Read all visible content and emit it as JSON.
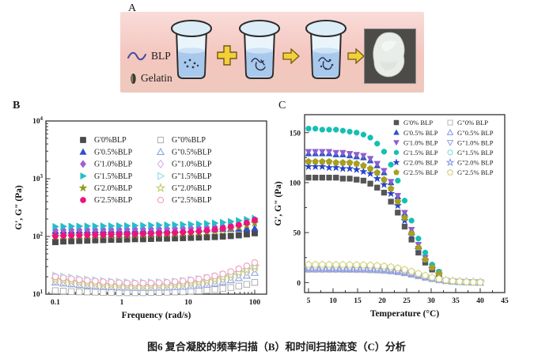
{
  "caption": "图6 复合凝胶的频率扫描（B）和时间扫描流变（C）分析",
  "panelA": {
    "label": "A",
    "legend": {
      "blp": "BLP",
      "gelatin": "Gelatin"
    }
  },
  "panelB": {
    "label": "B"
  },
  "panelC": {
    "label": "C"
  },
  "chart_data": [
    {
      "id": "B",
      "type": "scatter",
      "xscale": "log",
      "yscale": "log",
      "xlabel": "Frequency (rad/s)",
      "ylabel": "G', G\" (Pa)",
      "xlim": [
        0.072,
        151
      ],
      "ylim": [
        10,
        10000
      ],
      "xticks": [
        0.1,
        1,
        10,
        100
      ],
      "xtick_labels": [
        "0.1",
        "1",
        "10",
        "100"
      ],
      "yticks": [
        10,
        100,
        1000,
        10000
      ],
      "ytick_exponents": [
        1,
        2,
        3,
        4
      ],
      "legend_position": "top-left-inside",
      "grid": false,
      "x": [
        0.1,
        0.132,
        0.174,
        0.229,
        0.302,
        0.398,
        0.525,
        0.692,
        0.912,
        1.2,
        1.58,
        2.09,
        2.75,
        3.63,
        4.79,
        6.31,
        8.32,
        10.96,
        14.45,
        19.05,
        25.12,
        33.11,
        43.65,
        57.54,
        75.86,
        100
      ],
      "series": [
        {
          "label": "G'0%BLP",
          "marker": "square",
          "filled": true,
          "color": "#4b4b4b",
          "values": [
            80,
            82,
            83,
            84,
            85,
            86,
            87,
            88,
            88,
            89,
            90,
            90,
            91,
            92,
            92,
            93,
            94,
            95,
            96,
            97,
            98,
            100,
            102,
            105,
            109,
            114
          ]
        },
        {
          "label": "G'0.5%BLP",
          "marker": "triangle-up",
          "filled": true,
          "color": "#2e4fc8",
          "values": [
            124,
            125,
            125,
            126,
            126,
            127,
            127,
            128,
            128,
            128,
            129,
            129,
            129,
            130,
            130,
            130,
            131,
            131,
            132,
            132,
            133,
            134,
            135,
            136,
            137,
            138
          ]
        },
        {
          "label": "G'1.0%BLP",
          "marker": "diamond",
          "filled": true,
          "color": "#a15cd6",
          "values": [
            128,
            129,
            130,
            130,
            131,
            131,
            132,
            132,
            133,
            133,
            134,
            134,
            135,
            136,
            136,
            137,
            138,
            139,
            141,
            143,
            146,
            150,
            156,
            163,
            172,
            183
          ]
        },
        {
          "label": "G'1.5%BLP",
          "marker": "triangle-right",
          "filled": true,
          "color": "#26bcc8",
          "values": [
            148,
            149,
            150,
            150,
            151,
            151,
            152,
            152,
            153,
            153,
            154,
            155,
            156,
            157,
            158,
            159,
            160,
            162,
            164,
            167,
            170,
            175,
            181,
            188,
            196,
            206
          ]
        },
        {
          "label": "G'2.0%BLP",
          "marker": "star",
          "filled": true,
          "color": "#8f9b1e",
          "values": [
            100,
            101,
            102,
            102,
            103,
            103,
            104,
            104,
            105,
            105,
            106,
            107,
            108,
            109,
            110,
            111,
            113,
            115,
            117,
            120,
            124,
            129,
            136,
            145,
            156,
            170
          ]
        },
        {
          "label": "G'2.5%BLP",
          "marker": "circle",
          "filled": true,
          "color": "#ee127e",
          "values": [
            102,
            103,
            104,
            105,
            106,
            106,
            107,
            108,
            108,
            109,
            110,
            111,
            112,
            113,
            114,
            116,
            118,
            120,
            123,
            127,
            132,
            138,
            147,
            158,
            172,
            192
          ]
        },
        {
          "label": "G\"0%BLP",
          "marker": "square",
          "filled": false,
          "color": "#b4b4b4",
          "values": [
            11.5,
            11.3,
            11.1,
            11,
            10.9,
            10.8,
            10.7,
            10.7,
            10.6,
            10.6,
            10.6,
            10.6,
            10.7,
            10.7,
            10.8,
            10.9,
            11,
            11.2,
            11.4,
            11.7,
            12,
            12.5,
            13,
            13.8,
            14.8,
            16
          ]
        },
        {
          "label": "G\"0.5%BLP",
          "marker": "triangle-up",
          "filled": false,
          "color": "#89a3e0",
          "values": [
            16,
            15.4,
            14.9,
            14.5,
            14.1,
            13.8,
            13.5,
            13.3,
            13.1,
            13,
            12.9,
            12.9,
            12.9,
            13,
            13.1,
            13.3,
            13.5,
            13.8,
            14.2,
            14.7,
            15.4,
            16.3,
            17.5,
            19,
            21,
            23.5
          ]
        },
        {
          "label": "G\"1.0%BLP",
          "marker": "diamond",
          "filled": false,
          "color": "#cfb2ea",
          "values": [
            17,
            16.4,
            15.8,
            15.3,
            14.9,
            14.5,
            14.2,
            14,
            13.8,
            13.7,
            13.6,
            13.6,
            13.7,
            13.8,
            14,
            14.2,
            14.5,
            14.9,
            15.4,
            16.1,
            17,
            18.2,
            19.8,
            21.8,
            24.4,
            27.7
          ]
        },
        {
          "label": "G\"1.5%BLP",
          "marker": "triangle-right",
          "filled": false,
          "color": "#90dce2",
          "values": [
            21,
            20.1,
            19.3,
            18.6,
            18,
            17.5,
            17,
            16.6,
            16.3,
            16.1,
            16,
            15.9,
            16,
            16.1,
            16.3,
            16.6,
            17,
            17.5,
            18.2,
            19,
            20.1,
            21.5,
            23.3,
            25.6,
            28.5,
            32
          ]
        },
        {
          "label": "G\"2.0%BLP",
          "marker": "star",
          "filled": false,
          "color": "#c3cd6e",
          "values": [
            18,
            17.3,
            16.6,
            16.1,
            15.6,
            15.2,
            14.8,
            14.5,
            14.3,
            14.1,
            14,
            14,
            14.1,
            14.2,
            14.4,
            14.7,
            15.1,
            15.6,
            16.2,
            17,
            18.1,
            19.5,
            21.2,
            23.4,
            26.2,
            29.7
          ]
        },
        {
          "label": "G\"2.5%BLP",
          "marker": "circle",
          "filled": false,
          "color": "#f59ac4",
          "values": [
            20,
            19.2,
            18.5,
            17.8,
            17.3,
            16.8,
            16.4,
            16.1,
            15.8,
            15.6,
            15.5,
            15.5,
            15.6,
            15.8,
            16,
            16.4,
            16.9,
            17.5,
            18.3,
            19.4,
            20.7,
            22.4,
            24.6,
            27.4,
            30.9,
            35.2
          ]
        }
      ]
    },
    {
      "id": "C",
      "type": "scatter",
      "xscale": "linear",
      "yscale": "linear",
      "xlabel": "Temperature (°C)",
      "ylabel": "G', G\" (Pa)",
      "xlim": [
        4.2,
        45
      ],
      "ylim": [
        -10,
        168
      ],
      "xticks": [
        5,
        10,
        15,
        20,
        25,
        30,
        35,
        40,
        45
      ],
      "xtick_labels": [
        "5",
        "10",
        "15",
        "20",
        "25",
        "30",
        "35",
        "40",
        "45"
      ],
      "yticks": [
        0,
        50,
        100,
        150
      ],
      "ytick_labels": [
        "0",
        "50",
        "100",
        "150"
      ],
      "legend_position": "top-right-inside",
      "grid": false,
      "x": [
        5,
        6.4,
        7.8,
        9.2,
        10.6,
        12,
        13.4,
        14.8,
        16.2,
        17.6,
        19,
        20.4,
        21.8,
        23.2,
        24.6,
        26,
        27.4,
        28.8,
        30.2,
        31.6,
        33,
        34.4,
        35.8,
        37.2,
        38.6,
        40
      ],
      "series": [
        {
          "label": "G'0% BLP",
          "marker": "square",
          "filled": true,
          "color": "#555555",
          "values": [
            105,
            105,
            105,
            105,
            105,
            104,
            104,
            103,
            102,
            99,
            95,
            90,
            81,
            70,
            56,
            43,
            30,
            20,
            13,
            8,
            null,
            null,
            null,
            null,
            null,
            null
          ]
        },
        {
          "label": "G'0.5% BLP",
          "marker": "triangle-up",
          "filled": true,
          "color": "#2f52c6",
          "values": [
            129,
            129,
            129,
            129,
            128,
            128,
            127,
            126,
            125,
            122,
            117,
            110,
            100,
            86,
            69,
            52,
            37,
            25,
            15,
            9,
            null,
            null,
            null,
            null,
            null,
            null
          ]
        },
        {
          "label": "G'1.0% BLP",
          "marker": "triangle-down",
          "filled": true,
          "color": "#8f5ecf",
          "values": [
            131,
            131,
            131,
            131,
            130,
            130,
            129,
            128,
            127,
            124,
            119,
            112,
            101,
            87,
            70,
            53,
            38,
            25,
            16,
            10,
            null,
            null,
            null,
            null,
            null,
            null
          ]
        },
        {
          "label": "G'1.5% BLP",
          "marker": "circle",
          "filled": true,
          "color": "#14bfb4",
          "values": [
            154,
            154,
            153,
            153,
            153,
            152,
            151,
            150,
            148,
            145,
            139,
            131,
            118,
            102,
            82,
            62,
            44,
            30,
            18,
            11,
            null,
            null,
            null,
            null,
            null,
            null
          ]
        },
        {
          "label": "G'2.0% BLP",
          "marker": "star",
          "filled": true,
          "color": "#2543cc",
          "values": [
            116,
            116,
            116,
            115,
            115,
            114,
            114,
            113,
            111,
            109,
            104,
            98,
            89,
            77,
            62,
            47,
            33,
            22,
            14,
            8,
            null,
            null,
            null,
            null,
            null,
            null
          ]
        },
        {
          "label": "G'2.5% BLP",
          "marker": "pentagon",
          "filled": true,
          "color": "#a89f20",
          "values": [
            121,
            121,
            121,
            121,
            120,
            120,
            120,
            119,
            117,
            114,
            110,
            103,
            94,
            81,
            65,
            49,
            35,
            23,
            15,
            9,
            null,
            null,
            null,
            null,
            null,
            null
          ]
        },
        {
          "label": "G\"0% BLP",
          "marker": "square",
          "filled": false,
          "color": "#bbbbbb",
          "values": [
            13,
            13,
            13,
            13,
            13,
            12.9,
            12.9,
            12.8,
            12.7,
            12.5,
            12.3,
            11.9,
            11.3,
            10.5,
            9.5,
            8.1,
            6.6,
            5.1,
            3.8,
            2.7,
            1.8,
            1.2,
            0.8,
            0.5,
            0.3,
            0.2
          ]
        },
        {
          "label": "G\"0.5% BLP",
          "marker": "triangle-up",
          "filled": false,
          "color": "#8ba1dd",
          "values": [
            13.5,
            13.5,
            13.5,
            13.4,
            13.4,
            13.4,
            13.3,
            13.3,
            13.2,
            13,
            12.7,
            12.3,
            11.7,
            10.9,
            9.8,
            8.4,
            6.9,
            5.3,
            3.9,
            2.8,
            1.9,
            1.2,
            0.8,
            0.5,
            0.3,
            0.2
          ]
        },
        {
          "label": "G\"1.0% BLP",
          "marker": "triangle-down",
          "filled": false,
          "color": "#9fa9e6",
          "values": [
            14,
            14,
            14,
            14,
            13.9,
            13.9,
            13.9,
            13.8,
            13.7,
            13.5,
            13.2,
            12.8,
            12.2,
            11.3,
            10.2,
            8.7,
            7.1,
            5.5,
            4,
            2.9,
            1.9,
            1.3,
            0.8,
            0.5,
            0.3,
            0.2
          ]
        },
        {
          "label": "G\"1.5% BLP",
          "marker": "circle",
          "filled": false,
          "color": "#82ded6",
          "values": [
            17,
            17,
            17,
            17,
            16.9,
            16.9,
            16.8,
            16.7,
            16.6,
            16.4,
            16,
            15.5,
            14.8,
            13.8,
            12.4,
            10.6,
            8.6,
            6.7,
            4.9,
            3.5,
            2.3,
            1.6,
            1,
            0.6,
            0.4,
            0.3
          ]
        },
        {
          "label": "G\"2.0% BLP",
          "marker": "star",
          "filled": false,
          "color": "#8e9ce8",
          "values": [
            14.5,
            14.5,
            14.5,
            14.4,
            14.4,
            14.4,
            14.3,
            14.3,
            14.2,
            14,
            13.7,
            13.2,
            12.6,
            11.7,
            10.5,
            9,
            7.4,
            5.7,
            4.2,
            3,
            2,
            1.3,
            0.9,
            0.6,
            0.4,
            0.2
          ]
        },
        {
          "label": "G\"2.5% BLP",
          "marker": "pentagon",
          "filled": false,
          "color": "#d3d27e",
          "values": [
            18,
            18,
            18,
            18,
            17.9,
            17.9,
            17.8,
            17.7,
            17.6,
            17.4,
            17,
            16.5,
            15.7,
            14.6,
            13.1,
            11.2,
            9.1,
            7.1,
            5.2,
            3.7,
            2.5,
            1.7,
            1.1,
            0.7,
            0.4,
            0.3
          ]
        }
      ]
    }
  ]
}
